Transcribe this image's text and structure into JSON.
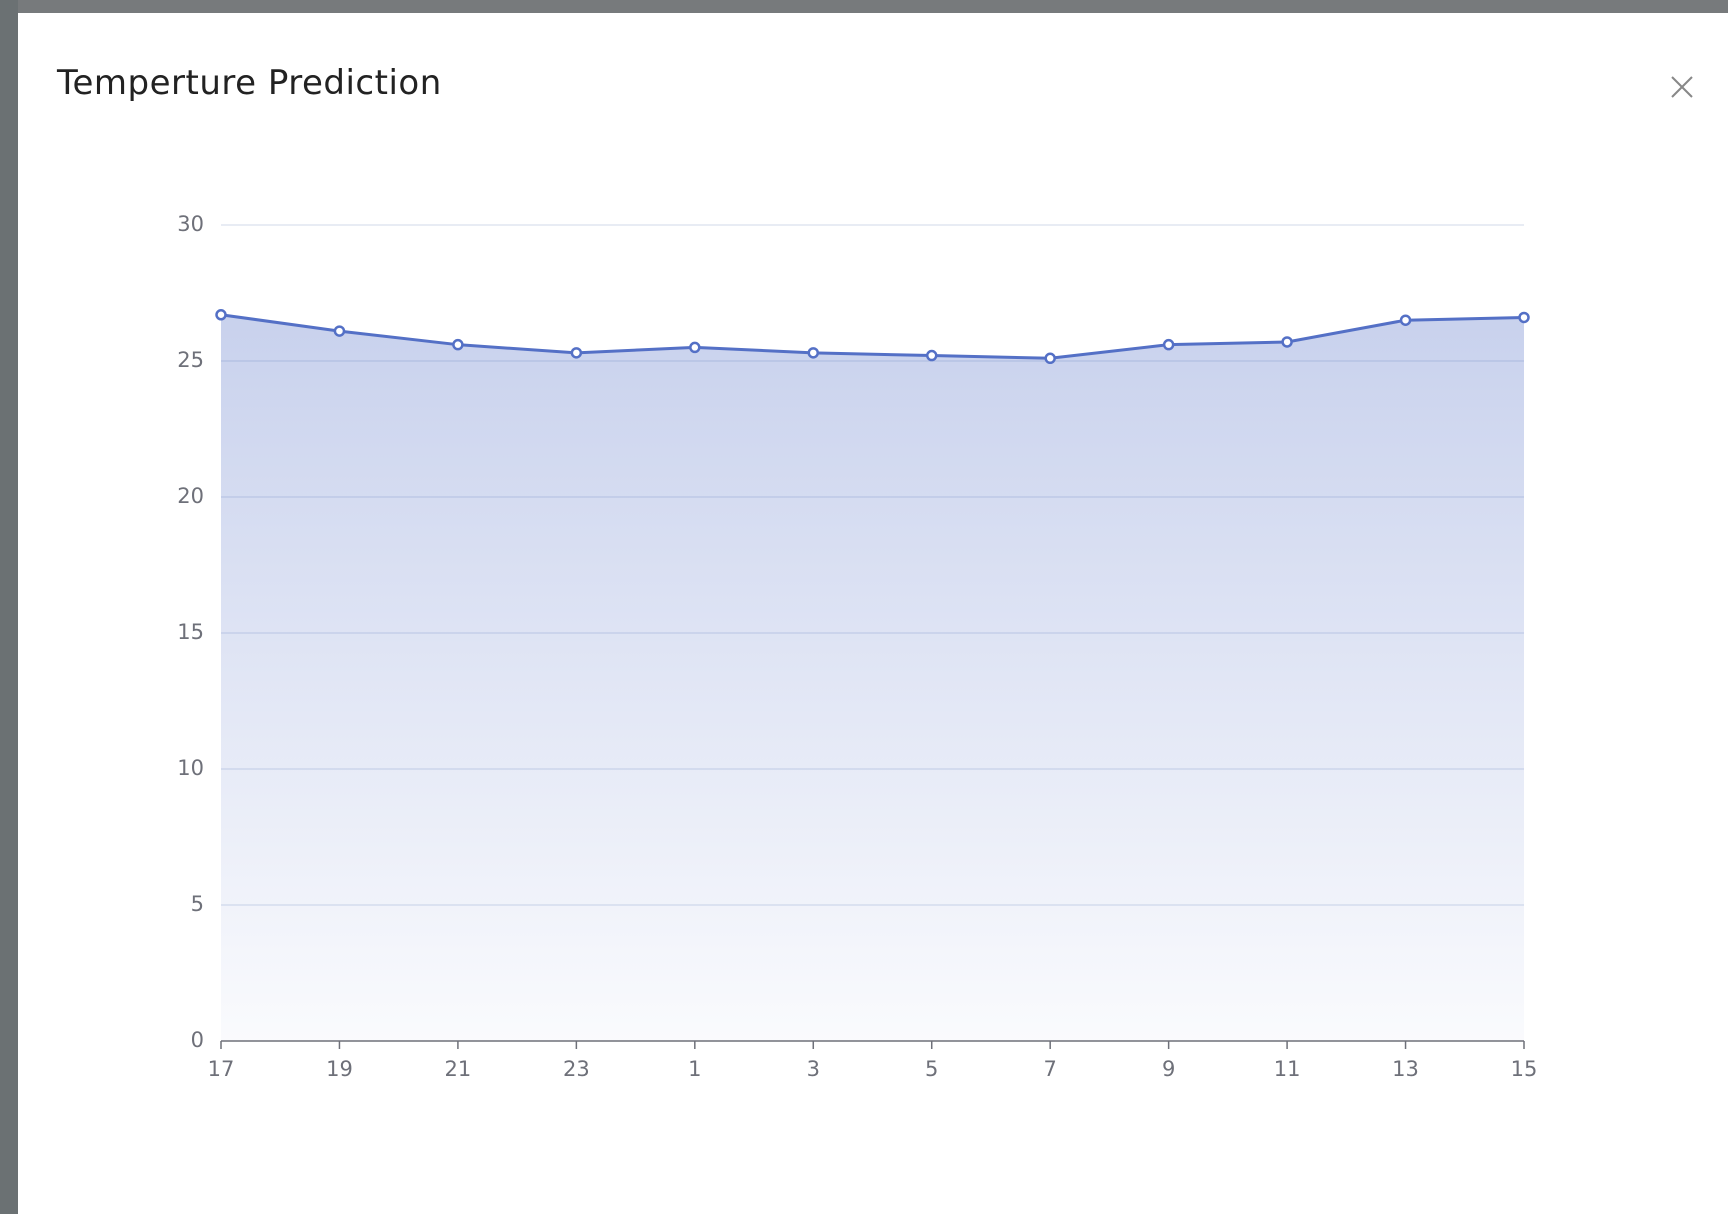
{
  "dialog": {
    "title": "Temperture Prediction"
  },
  "chart_data": {
    "type": "line",
    "categories": [
      "17",
      "19",
      "21",
      "23",
      "1",
      "3",
      "5",
      "7",
      "9",
      "11",
      "13",
      "15"
    ],
    "values": [
      26.7,
      26.1,
      25.6,
      25.3,
      25.5,
      25.3,
      25.2,
      25.1,
      25.6,
      25.7,
      26.5,
      26.6
    ],
    "color": "#5470c6",
    "ylim": [
      0,
      30
    ],
    "yticks": [
      0,
      5,
      10,
      15,
      20,
      25,
      30
    ],
    "grid": true
  }
}
